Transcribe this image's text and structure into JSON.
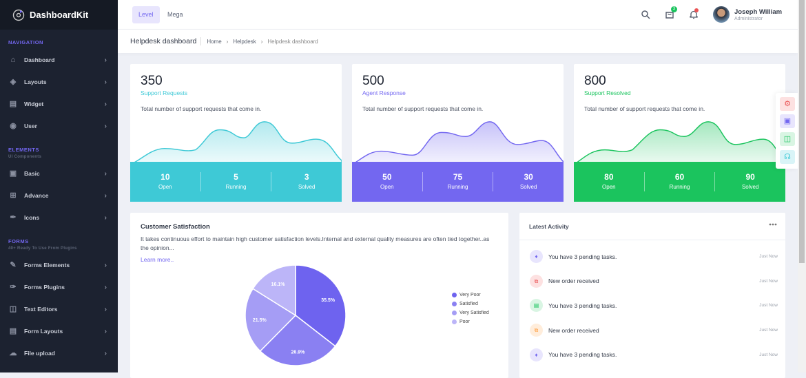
{
  "brand": {
    "name": "DashboardKit"
  },
  "sidebar": {
    "sections": [
      {
        "title": "NAVIGATION",
        "subtitle": "",
        "items": [
          {
            "label": "Dashboard",
            "icon": "home-icon"
          },
          {
            "label": "Layouts",
            "icon": "layers-icon"
          },
          {
            "label": "Widget",
            "icon": "gift-icon"
          },
          {
            "label": "User",
            "icon": "user-icon"
          }
        ]
      },
      {
        "title": "ELEMENTS",
        "subtitle": "UI Components",
        "items": [
          {
            "label": "Basic",
            "icon": "briefcase-icon"
          },
          {
            "label": "Advance",
            "icon": "grid-icon"
          },
          {
            "label": "Icons",
            "icon": "feather-icon"
          }
        ]
      },
      {
        "title": "FORMS",
        "subtitle": "40+ Ready To Use From Plugins",
        "items": [
          {
            "label": "Forms Elements",
            "icon": "pencil-icon"
          },
          {
            "label": "Forms Plugins",
            "icon": "brush-icon"
          },
          {
            "label": "Text Editors",
            "icon": "layout-icon"
          },
          {
            "label": "Form Layouts",
            "icon": "table-icon"
          },
          {
            "label": "File upload",
            "icon": "cloud-upload-icon"
          }
        ]
      }
    ]
  },
  "topbar": {
    "tabs": [
      {
        "label": "Level",
        "active": true
      },
      {
        "label": "Mega",
        "active": false
      }
    ],
    "cart_badge": "3",
    "user": {
      "name": "Joseph William",
      "role": "Administrator"
    }
  },
  "breadcrumb": {
    "title": "Helpdesk dashboard",
    "items": [
      "Home",
      "Helpdesk",
      "Helpdesk dashboard"
    ]
  },
  "stats": [
    {
      "value": "350",
      "label": "Support Requests",
      "description": "Total number of support requests that come in.",
      "color": "#3ec9d6",
      "metrics": [
        {
          "value": "10",
          "label": "Open"
        },
        {
          "value": "5",
          "label": "Running"
        },
        {
          "value": "3",
          "label": "Solved"
        }
      ]
    },
    {
      "value": "500",
      "label": "Agent Response",
      "description": "Total number of support requests that come in.",
      "color": "#7367f0",
      "metrics": [
        {
          "value": "50",
          "label": "Open"
        },
        {
          "value": "75",
          "label": "Running"
        },
        {
          "value": "30",
          "label": "Solved"
        }
      ]
    },
    {
      "value": "800",
      "label": "Support Resolved",
      "description": "Total number of support requests that come in.",
      "color": "#1bc45e",
      "metrics": [
        {
          "value": "80",
          "label": "Open"
        },
        {
          "value": "60",
          "label": "Running"
        },
        {
          "value": "90",
          "label": "Solved"
        }
      ]
    }
  ],
  "satisfaction": {
    "title": "Customer Satisfaction",
    "description": "It takes continuous effort to maintain high customer satisfaction levels.Internal and external quality measures are often tied together..as the opinion...",
    "link": "Learn more..",
    "chart_data": {
      "type": "pie",
      "labels": [
        "Very Poor",
        "Satisfied",
        "Very Satisfied",
        "Poor"
      ],
      "values": [
        35.5,
        26.9,
        21.5,
        16.1
      ],
      "value_labels": [
        "35.5%",
        "26.9%",
        "21.5%",
        "16.1%"
      ],
      "colors": [
        "#6e63ef",
        "#8a80f2",
        "#a59df5",
        "#bcb5f8"
      ],
      "legend": "right"
    }
  },
  "activity": {
    "title": "Latest Activity",
    "items": [
      {
        "text": "You have 3 pending tasks.",
        "time": "Just Now",
        "icon": "bell-icon",
        "color": "#7367f0",
        "bg": "#e8e5fd"
      },
      {
        "text": "New order received",
        "time": "Just Now",
        "icon": "cart-icon",
        "color": "#ea5455",
        "bg": "#fde1e1"
      },
      {
        "text": "You have 3 pending tasks.",
        "time": "Just Now",
        "icon": "file-icon",
        "color": "#1bc45e",
        "bg": "#d9f5e3"
      },
      {
        "text": "New order received",
        "time": "Just Now",
        "icon": "cart-icon",
        "color": "#ff9f43",
        "bg": "#ffeddb"
      },
      {
        "text": "You have 3 pending tasks.",
        "time": "Just Now",
        "icon": "bell-icon",
        "color": "#7367f0",
        "bg": "#e8e5fd"
      }
    ]
  }
}
